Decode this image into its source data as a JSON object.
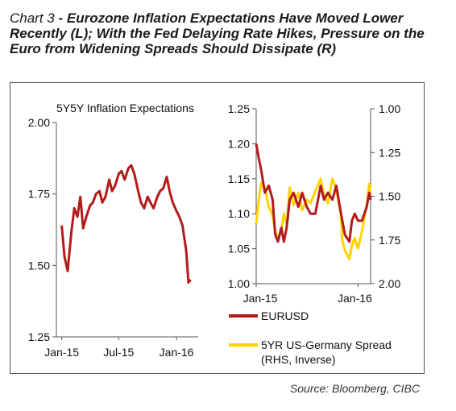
{
  "header": {
    "chart_number": "Chart 3",
    "headline": " - Eurozone Inflation Expectations Have Moved Lower Recently (L); With the Fed Delaying Rate Hikes, Pressure on the Euro from Widening Spreads Should Dissipate (R)"
  },
  "source": "Source:  Bloomberg, CIBC",
  "colors": {
    "eurusd": "#b31b1b",
    "spread": "#ffd400",
    "axis": "#555555"
  },
  "chart_data": [
    {
      "type": "line",
      "title": "5Y5Y Inflation Expectations",
      "x_tick_labels": [
        "Jan-15",
        "Jul-15",
        "Jan-16"
      ],
      "xlim": [
        "2014-12-15",
        "2016-03-10"
      ],
      "ylim": [
        1.25,
        2.0
      ],
      "y_tick_labels": [
        "2.00",
        "1.75",
        "1.50",
        "1.25"
      ],
      "y_ticks": [
        2.0,
        1.75,
        1.5,
        1.25
      ],
      "grid": false,
      "series": [
        {
          "color": "#b31b1b",
          "x": [
            "2015-01-01",
            "2015-01-10",
            "2015-01-20",
            "2015-02-01",
            "2015-02-10",
            "2015-02-20",
            "2015-03-01",
            "2015-03-10",
            "2015-03-20",
            "2015-04-01",
            "2015-04-10",
            "2015-04-20",
            "2015-05-01",
            "2015-05-10",
            "2015-05-20",
            "2015-06-01",
            "2015-06-10",
            "2015-06-20",
            "2015-07-01",
            "2015-07-10",
            "2015-07-20",
            "2015-08-01",
            "2015-08-10",
            "2015-08-20",
            "2015-09-01",
            "2015-09-10",
            "2015-09-20",
            "2015-10-01",
            "2015-10-10",
            "2015-10-20",
            "2015-11-01",
            "2015-11-10",
            "2015-11-20",
            "2015-12-01",
            "2015-12-10",
            "2015-12-20",
            "2016-01-01",
            "2016-01-10",
            "2016-01-20",
            "2016-02-01",
            "2016-02-08",
            "2016-02-15"
          ],
          "values": [
            1.64,
            1.53,
            1.48,
            1.62,
            1.7,
            1.67,
            1.74,
            1.63,
            1.67,
            1.71,
            1.72,
            1.75,
            1.76,
            1.72,
            1.74,
            1.8,
            1.76,
            1.78,
            1.82,
            1.83,
            1.8,
            1.84,
            1.85,
            1.82,
            1.76,
            1.72,
            1.7,
            1.74,
            1.72,
            1.7,
            1.74,
            1.76,
            1.77,
            1.81,
            1.76,
            1.72,
            1.69,
            1.67,
            1.64,
            1.55,
            1.44,
            1.45
          ]
        }
      ]
    },
    {
      "type": "line",
      "x_tick_labels": [
        "Jan-15",
        "Jan-16"
      ],
      "xlim": [
        "2015-01-01",
        "2016-02-15"
      ],
      "ylim": [
        1.0,
        1.25
      ],
      "y_tick_labels": [
        "1.25",
        "1.20",
        "1.15",
        "1.10",
        "1.05",
        "1.00"
      ],
      "y_ticks": [
        1.25,
        1.2,
        1.15,
        1.1,
        1.05,
        1.0
      ],
      "y2lim": [
        1.0,
        2.0
      ],
      "y2_inverted": true,
      "y2_tick_labels": [
        "1.00",
        "1.25",
        "1.50",
        "1.75",
        "2.00"
      ],
      "y2_ticks": [
        1.0,
        1.25,
        1.5,
        1.75,
        2.0
      ],
      "grid": false,
      "legend_position": "bottom",
      "series": [
        {
          "name": "EURUSD",
          "color": "#b31b1b",
          "axis": "left",
          "x": [
            "2015-01-01",
            "2015-01-10",
            "2015-01-20",
            "2015-02-01",
            "2015-02-15",
            "2015-03-01",
            "2015-03-10",
            "2015-03-20",
            "2015-04-01",
            "2015-04-10",
            "2015-04-20",
            "2015-05-01",
            "2015-05-15",
            "2015-06-01",
            "2015-06-15",
            "2015-07-01",
            "2015-07-15",
            "2015-08-01",
            "2015-08-20",
            "2015-09-01",
            "2015-09-15",
            "2015-10-01",
            "2015-10-15",
            "2015-11-01",
            "2015-11-15",
            "2015-12-01",
            "2015-12-10",
            "2015-12-20",
            "2016-01-01",
            "2016-01-15",
            "2016-02-01",
            "2016-02-10",
            "2016-02-15"
          ],
          "values": [
            1.2,
            1.18,
            1.16,
            1.13,
            1.14,
            1.12,
            1.07,
            1.06,
            1.08,
            1.06,
            1.08,
            1.12,
            1.13,
            1.11,
            1.13,
            1.11,
            1.1,
            1.1,
            1.14,
            1.12,
            1.13,
            1.12,
            1.14,
            1.1,
            1.07,
            1.06,
            1.09,
            1.1,
            1.09,
            1.09,
            1.11,
            1.13,
            1.12
          ]
        },
        {
          "name": "5YR US-Germany Spread (RHS, Inverse)",
          "color": "#ffd400",
          "axis": "right",
          "x": [
            "2015-01-01",
            "2015-01-10",
            "2015-01-20",
            "2015-02-01",
            "2015-02-15",
            "2015-03-01",
            "2015-03-10",
            "2015-03-20",
            "2015-04-01",
            "2015-04-10",
            "2015-04-20",
            "2015-05-01",
            "2015-05-15",
            "2015-06-01",
            "2015-06-15",
            "2015-07-01",
            "2015-07-15",
            "2015-08-01",
            "2015-08-20",
            "2015-09-01",
            "2015-09-15",
            "2015-10-01",
            "2015-10-15",
            "2015-11-01",
            "2015-11-05",
            "2015-11-15",
            "2015-12-01",
            "2015-12-10",
            "2015-12-20",
            "2016-01-01",
            "2016-01-15",
            "2016-02-01",
            "2016-02-10",
            "2016-02-15"
          ],
          "values": [
            1.66,
            1.52,
            1.42,
            1.45,
            1.56,
            1.61,
            1.7,
            1.74,
            1.7,
            1.6,
            1.66,
            1.45,
            1.55,
            1.48,
            1.58,
            1.52,
            1.54,
            1.47,
            1.4,
            1.49,
            1.54,
            1.4,
            1.46,
            1.61,
            1.75,
            1.81,
            1.86,
            1.78,
            1.74,
            1.8,
            1.7,
            1.55,
            1.43,
            1.49
          ]
        }
      ]
    }
  ]
}
